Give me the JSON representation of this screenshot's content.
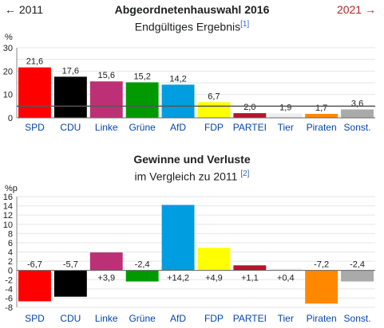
{
  "navigation": {
    "prev_label": "← 2011",
    "next_label": "2021 →"
  },
  "chart_data": [
    {
      "type": "bar",
      "title": "Abgeordnetenhauswahl 2016",
      "subtitle": "Endgültiges Ergebnis",
      "footnote": "[1]",
      "ylabel": "%",
      "ylim": [
        0,
        30
      ],
      "yticks": [
        0,
        10,
        20,
        30
      ],
      "threshold": 5,
      "categories": [
        "SPD",
        "CDU",
        "Linke",
        "Grüne",
        "AfD",
        "FDP",
        "PARTEI",
        "Tier",
        "Piraten",
        "Sonst."
      ],
      "values": [
        21.6,
        17.6,
        15.6,
        15.2,
        14.2,
        6.7,
        2.0,
        1.9,
        1.7,
        3.6
      ],
      "value_labels": [
        "21,6",
        "17,6",
        "15,6",
        "15,2",
        "14,2",
        "6,7",
        "2,0",
        "1,9",
        "1,7",
        "3,6"
      ],
      "colors": [
        "#ff0000",
        "#000000",
        "#be3075",
        "#009a00",
        "#009ee0",
        "#ffff00",
        "#b5152b",
        "#eeeeee",
        "#ff8800",
        "#aaaaaa"
      ]
    },
    {
      "type": "bar",
      "title": "Gewinne und Verluste",
      "subtitle": "im Vergleich zu 2011",
      "footnote": "[2]",
      "ylabel": "%p",
      "ylim": [
        -8,
        16
      ],
      "yticks": [
        -8,
        -6,
        -4,
        -2,
        0,
        2,
        4,
        6,
        8,
        10,
        12,
        14,
        16
      ],
      "categories": [
        "SPD",
        "CDU",
        "Linke",
        "Grüne",
        "AfD",
        "FDP",
        "PARTEI",
        "Tier",
        "Piraten",
        "Sonst."
      ],
      "values": [
        -6.7,
        -5.7,
        3.9,
        -2.4,
        14.2,
        4.9,
        1.1,
        0.4,
        -7.2,
        -2.4
      ],
      "value_labels": [
        "-6,7",
        "-5,7",
        "+3,9",
        "-2,4",
        "+14,2",
        "+4,9",
        "+1,1",
        "+0,4",
        "-7,2",
        "-2,4"
      ],
      "colors": [
        "#ff0000",
        "#000000",
        "#be3075",
        "#009a00",
        "#009ee0",
        "#ffff00",
        "#b5152b",
        "#eeeeee",
        "#ff8800",
        "#aaaaaa"
      ]
    }
  ],
  "category_link_color": "#0645ad"
}
